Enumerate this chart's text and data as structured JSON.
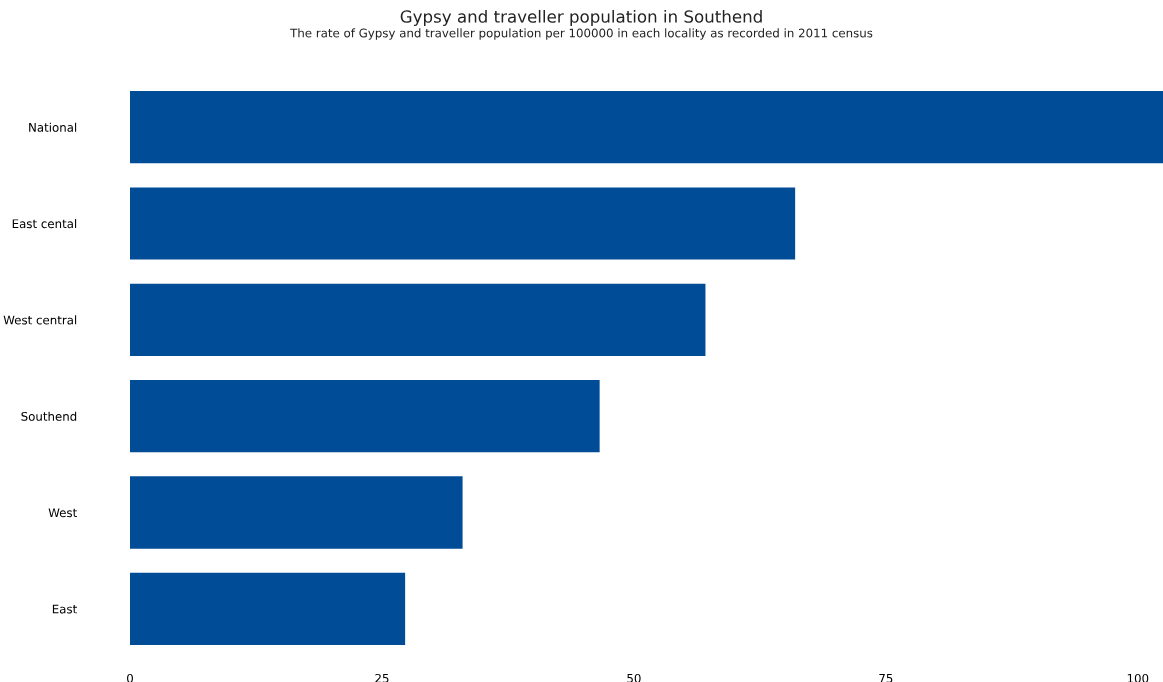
{
  "chart_data": {
    "type": "bar",
    "orientation": "horizontal",
    "title": "Gypsy and traveller population in Southend",
    "subtitle": "The rate of Gypsy and traveller population per 100000 in each locality as recorded in 2011 census",
    "categories": [
      "National",
      "East cental",
      "West central",
      "Southend",
      "West",
      "East"
    ],
    "values": [
      102.5,
      66.0,
      57.1,
      46.6,
      33.0,
      27.3
    ],
    "color": "#004c97",
    "xlim": [
      0,
      102.5
    ],
    "xticks": [
      0,
      25,
      50,
      75,
      100
    ],
    "grid": false,
    "legend": false
  }
}
